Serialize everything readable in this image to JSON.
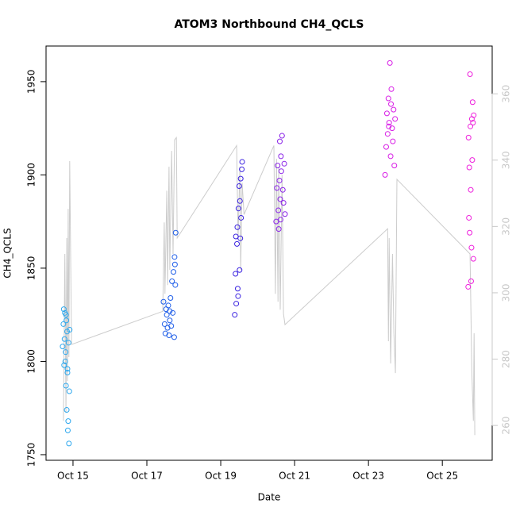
{
  "chart_data": {
    "type": "scatter",
    "title": "ATOM3 Northbound CH4_QCLS",
    "x_label": "Date",
    "y_label": "CH4_QCLS",
    "xlim": [
      14.27,
      26.35
    ],
    "xticks": [
      {
        "value": 15,
        "label": "Oct 15"
      },
      {
        "value": 17,
        "label": "Oct 17"
      },
      {
        "value": 19,
        "label": "Oct 19"
      },
      {
        "value": 21,
        "label": "Oct 21"
      },
      {
        "value": 23,
        "label": "Oct 23"
      },
      {
        "value": 25,
        "label": "Oct 25"
      }
    ],
    "ylim": [
      1747.0,
      1969.1
    ],
    "yticks": [
      1750,
      1800,
      1850,
      1900,
      1950
    ],
    "y2lim": [
      249.5,
      374.4
    ],
    "y2ticks": [
      260,
      280,
      300,
      320,
      340,
      360
    ],
    "y2_color": "#c8c8c8",
    "series": [
      {
        "type": "line",
        "axis": "y2",
        "color": "#cccccc",
        "x": [
          14.74,
          14.78,
          14.81,
          14.83,
          14.85,
          14.87,
          14.89,
          14.91,
          14.96,
          17.43,
          17.47,
          17.49,
          17.54,
          17.56,
          17.6,
          17.62,
          17.67,
          17.71,
          17.75,
          17.8,
          17.82,
          19.43,
          19.47,
          19.52,
          19.54,
          19.58,
          19.63,
          20.44,
          20.48,
          20.51,
          20.55,
          20.57,
          20.61,
          20.66,
          20.7,
          20.74,
          23.52,
          23.54,
          23.56,
          23.6,
          23.65,
          23.69,
          23.73,
          23.77,
          25.75,
          25.8,
          25.84,
          25.86,
          25.88
        ],
        "values": [
          261.4,
          311.7,
          263.8,
          316.5,
          273.4,
          325.3,
          280.6,
          339.7,
          284.4,
          294.4,
          321.2,
          299.7,
          330.8,
          302.3,
          338.0,
          306.9,
          342.8,
          311.7,
          346.1,
          346.8,
          316.5,
          344.4,
          316.5,
          338.0,
          306.9,
          333.2,
          323.6,
          344.4,
          299.7,
          340.4,
          297.3,
          338.0,
          294.9,
          335.6,
          293.7,
          290.4,
          319.3,
          285.4,
          316.5,
          278.7,
          311.7,
          287.8,
          275.8,
          334.2,
          311.7,
          275.8,
          261.4,
          287.8,
          257.1
        ]
      },
      {
        "type": "scatter",
        "color": "#2ea8ee",
        "x": [
          14.72,
          14.74,
          14.75,
          14.76,
          14.77,
          14.78,
          14.79,
          14.8,
          14.81,
          14.82,
          14.83,
          14.84,
          14.85,
          14.86,
          14.87,
          14.88,
          14.89,
          14.9,
          14.91,
          14.81,
          14.85
        ],
        "values": [
          1808,
          1820,
          1828,
          1798,
          1812,
          1826,
          1800,
          1805,
          1787,
          1822,
          1774,
          1816,
          1796,
          1763,
          1768,
          1810,
          1756,
          1784,
          1817,
          1825,
          1794
        ]
      },
      {
        "type": "scatter",
        "color": "#1f5ee8",
        "x": [
          17.45,
          17.48,
          17.5,
          17.52,
          17.54,
          17.56,
          17.58,
          17.6,
          17.62,
          17.64,
          17.66,
          17.68,
          17.7,
          17.72,
          17.74,
          17.76,
          17.78,
          17.77,
          17.75,
          17.62
        ],
        "values": [
          1832,
          1820,
          1815,
          1828,
          1825,
          1818,
          1830,
          1814,
          1822,
          1834,
          1819,
          1843,
          1826,
          1848,
          1813,
          1852,
          1869,
          1841,
          1856,
          1827
        ]
      },
      {
        "type": "scatter",
        "color": "#3a22e0",
        "x": [
          19.38,
          19.4,
          19.41,
          19.42,
          19.44,
          19.45,
          19.46,
          19.48,
          19.5,
          19.51,
          19.52,
          19.54,
          19.55,
          19.57,
          19.58,
          19.47,
          19.53
        ],
        "values": [
          1825,
          1847,
          1867,
          1831,
          1863,
          1872,
          1839,
          1882,
          1894,
          1849,
          1886,
          1898,
          1877,
          1903,
          1907,
          1835,
          1866
        ]
      },
      {
        "type": "scatter",
        "color": "#8a22e8",
        "x": [
          20.5,
          20.52,
          20.54,
          20.56,
          20.57,
          20.59,
          20.6,
          20.61,
          20.62,
          20.64,
          20.66,
          20.68,
          20.7,
          20.72,
          20.74,
          20.63
        ],
        "values": [
          1875,
          1893,
          1905,
          1881,
          1871,
          1897,
          1918,
          1887,
          1876,
          1902,
          1921,
          1892,
          1885,
          1906,
          1879,
          1910
        ]
      },
      {
        "type": "scatter",
        "color": "#d81fe6",
        "x": [
          23.45,
          23.48,
          23.5,
          23.52,
          23.54,
          23.56,
          23.58,
          23.6,
          23.62,
          23.64,
          23.66,
          23.68,
          23.7,
          23.72,
          23.55,
          23.61
        ],
        "values": [
          1900,
          1915,
          1933,
          1922,
          1941,
          1928,
          1960,
          1910,
          1946,
          1925,
          1918,
          1935,
          1905,
          1930,
          1926,
          1938
        ]
      },
      {
        "type": "scatter",
        "color": "#ee1fdc",
        "x": [
          25.7,
          25.71,
          25.72,
          25.73,
          25.74,
          25.75,
          25.76,
          25.77,
          25.78,
          25.79,
          25.8,
          25.81,
          25.82,
          25.83,
          25.84,
          25.85
        ],
        "values": [
          1840,
          1920,
          1877,
          1904,
          1869,
          1954,
          1926,
          1892,
          1843,
          1861,
          1930,
          1908,
          1939,
          1928,
          1855,
          1932
        ]
      }
    ]
  }
}
